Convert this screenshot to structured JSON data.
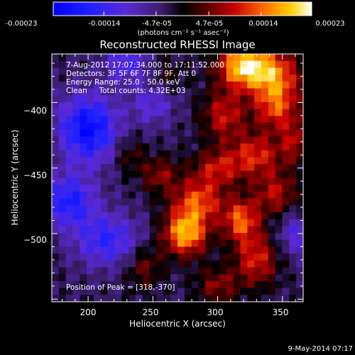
{
  "chart_data": {
    "type": "heatmap",
    "title": "Reconstructed RHESSI Image",
    "xlabel": "Heliocentric X (arcsec)",
    "ylabel": "Heliocentric Y (arcsec)",
    "xlim": [
      172,
      366
    ],
    "ylim": [
      -552,
      -363
    ],
    "x_ticks": [
      200,
      250,
      300,
      350
    ],
    "y_ticks": [
      -400,
      -450,
      -500
    ],
    "colorbar": {
      "range": [
        -0.00023,
        0.00023
      ],
      "tick_values": [
        -0.00023,
        -0.00014,
        -4.7e-05,
        4.7e-05,
        0.00014,
        0.00023
      ],
      "tick_labels": [
        "-0.00023",
        "-0.00014",
        "-4.7e-05",
        "4.7e-05",
        "0.00014",
        "0.00023"
      ],
      "unit_label": "(photons cm⁻² s⁻¹ asec⁻²)"
    },
    "annotations": [
      "7-Aug-2012 17:07:34.000 to 17:11:52.000",
      "Detectors: 3F 5F 6F 7F 8F 9F, Att 0",
      "Energy Range: 25.0 - 50.0 keV",
      "Clean     Total counts: 4.32E+03"
    ],
    "peak_label": "Position of Peak = [318,-370]",
    "peak_position": [
      318,
      -370
    ],
    "footer_date": "9-May-2014 07:17",
    "grid_size": [
      36,
      36
    ],
    "blobs": [
      {
        "x": 320,
        "y": -372,
        "sx": 14,
        "sy": 12,
        "amp": 0.00023
      },
      {
        "x": 345,
        "y": -380,
        "sx": 14,
        "sy": 14,
        "amp": 0.00016
      },
      {
        "x": 345,
        "y": -405,
        "sx": 12,
        "sy": 12,
        "amp": 0.00013
      },
      {
        "x": 305,
        "y": -410,
        "sx": 12,
        "sy": 14,
        "amp": 0.00012
      },
      {
        "x": 330,
        "y": -440,
        "sx": 14,
        "sy": 12,
        "amp": 0.00013
      },
      {
        "x": 300,
        "y": -450,
        "sx": 14,
        "sy": 10,
        "amp": 0.00011
      },
      {
        "x": 285,
        "y": -475,
        "sx": 14,
        "sy": 12,
        "amp": 0.00015
      },
      {
        "x": 275,
        "y": -500,
        "sx": 12,
        "sy": 12,
        "amp": 0.00021
      },
      {
        "x": 318,
        "y": -490,
        "sx": 10,
        "sy": 12,
        "amp": 0.00016
      },
      {
        "x": 330,
        "y": -520,
        "sx": 12,
        "sy": 14,
        "amp": 0.00013
      },
      {
        "x": 345,
        "y": -470,
        "sx": 12,
        "sy": 12,
        "amp": 0.00011
      },
      {
        "x": 255,
        "y": -455,
        "sx": 10,
        "sy": 10,
        "amp": 9e-05
      },
      {
        "x": 243,
        "y": -525,
        "sx": 10,
        "sy": 12,
        "amp": 8e-05
      },
      {
        "x": 300,
        "y": -540,
        "sx": 12,
        "sy": 10,
        "amp": 9e-05
      },
      {
        "x": 360,
        "y": -430,
        "sx": 8,
        "sy": 12,
        "amp": 0.0001
      },
      {
        "x": 260,
        "y": -380,
        "sx": 10,
        "sy": 10,
        "amp": 5e-05
      },
      {
        "x": 232,
        "y": -440,
        "sx": 8,
        "sy": 10,
        "amp": 6e-05
      },
      {
        "x": 200,
        "y": -420,
        "sx": 16,
        "sy": 18,
        "amp": -0.00018
      },
      {
        "x": 185,
        "y": -475,
        "sx": 14,
        "sy": 14,
        "amp": -0.00014
      },
      {
        "x": 215,
        "y": -505,
        "sx": 18,
        "sy": 14,
        "amp": -0.00012
      },
      {
        "x": 250,
        "y": -400,
        "sx": 12,
        "sy": 12,
        "amp": -8e-05
      },
      {
        "x": 230,
        "y": -370,
        "sx": 12,
        "sy": 10,
        "amp": -0.0001
      },
      {
        "x": 360,
        "y": -500,
        "sx": 10,
        "sy": 12,
        "amp": -8e-05
      }
    ]
  }
}
